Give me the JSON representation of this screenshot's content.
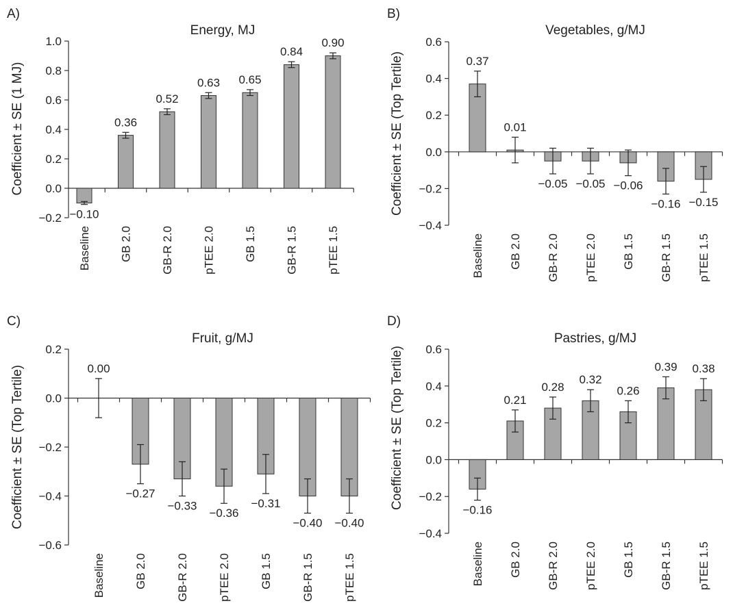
{
  "chart_data": [
    {
      "panel_label": "A)",
      "type": "bar",
      "title": "Energy, MJ",
      "ylabel": "Coefficient ± SE (1 MJ)",
      "xlabel": "",
      "ylim": [
        -0.2,
        1.0
      ],
      "yticks": [
        -0.2,
        0.0,
        0.2,
        0.4,
        0.6,
        0.8,
        1.0
      ],
      "ytick_labels": [
        "−0.2",
        "0.0",
        "0.2",
        "0.4",
        "0.6",
        "0.8",
        "1.0"
      ],
      "categories": [
        "Baseline",
        "GB 2.0",
        "GB-R 2.0",
        "pTEE 2.0",
        "GB 1.5",
        "GB-R 1.5",
        "pTEE 1.5"
      ],
      "values": [
        -0.1,
        0.36,
        0.52,
        0.63,
        0.65,
        0.84,
        0.9
      ],
      "errors": [
        0.01,
        0.02,
        0.02,
        0.02,
        0.02,
        0.02,
        0.02
      ],
      "value_labels": [
        "−0.10",
        "0.36",
        "0.52",
        "0.63",
        "0.65",
        "0.84",
        "0.90"
      ],
      "bar_color": "#a6a6a6",
      "grid": false
    },
    {
      "panel_label": "B)",
      "type": "bar",
      "title": "Vegetables, g/MJ",
      "ylabel": "Coefficient ± SE (Top Tertile)",
      "xlabel": "",
      "ylim": [
        -0.4,
        0.6
      ],
      "yticks": [
        -0.4,
        -0.2,
        0.0,
        0.2,
        0.4,
        0.6
      ],
      "ytick_labels": [
        "−0.4",
        "−0.2",
        "0.0",
        "0.2",
        "0.4",
        "0.6"
      ],
      "categories": [
        "Baseline",
        "GB 2.0",
        "GB-R 2.0",
        "pTEE 2.0",
        "GB 1.5",
        "GB-R 1.5",
        "pTEE 1.5"
      ],
      "values": [
        0.37,
        0.01,
        -0.05,
        -0.05,
        -0.06,
        -0.16,
        -0.15
      ],
      "errors": [
        0.07,
        0.07,
        0.07,
        0.07,
        0.07,
        0.07,
        0.07
      ],
      "value_labels": [
        "0.37",
        "0.01",
        "−0.05",
        "−0.05",
        "−0.06",
        "−0.16",
        "−0.15"
      ],
      "bar_color": "#a6a6a6",
      "grid": false
    },
    {
      "panel_label": "C)",
      "type": "bar",
      "title": "Fruit, g/MJ",
      "ylabel": "Coefficient ± SE (Top Tertile)",
      "xlabel": "",
      "ylim": [
        -0.6,
        0.2
      ],
      "yticks": [
        -0.6,
        -0.4,
        -0.2,
        0.0,
        0.2
      ],
      "ytick_labels": [
        "−0.6",
        "−0.4",
        "−0.2",
        "0.0",
        "0.2"
      ],
      "categories": [
        "Baseline",
        "GB 2.0",
        "GB-R 2.0",
        "pTEE 2.0",
        "GB 1.5",
        "GB-R 1.5",
        "pTEE 1.5"
      ],
      "values": [
        0.0,
        -0.27,
        -0.33,
        -0.36,
        -0.31,
        -0.4,
        -0.4
      ],
      "errors": [
        0.08,
        0.08,
        0.07,
        0.07,
        0.08,
        0.07,
        0.07
      ],
      "value_labels": [
        "0.00",
        "−0.27",
        "−0.33",
        "−0.36",
        "−0.31",
        "−0.40",
        "−0.40"
      ],
      "bar_color": "#a6a6a6",
      "grid": false
    },
    {
      "panel_label": "D)",
      "type": "bar",
      "title": "Pastries, g/MJ",
      "ylabel": "Coefficient ± SE (Top Tertile)",
      "xlabel": "",
      "ylim": [
        -0.4,
        0.6
      ],
      "yticks": [
        -0.4,
        -0.2,
        0.0,
        0.2,
        0.4,
        0.6
      ],
      "ytick_labels": [
        "−0.4",
        "−0.2",
        "0.0",
        "0.2",
        "0.4",
        "0.6"
      ],
      "categories": [
        "Baseline",
        "GB 2.0",
        "GB-R 2.0",
        "pTEE 2.0",
        "GB 1.5",
        "GB-R 1.5",
        "pTEE 1.5"
      ],
      "values": [
        -0.16,
        0.21,
        0.28,
        0.32,
        0.26,
        0.39,
        0.38
      ],
      "errors": [
        0.06,
        0.06,
        0.06,
        0.06,
        0.06,
        0.06,
        0.06
      ],
      "value_labels": [
        "−0.16",
        "0.21",
        "0.28",
        "0.32",
        "0.26",
        "0.39",
        "0.38"
      ],
      "bar_color": "#a6a6a6",
      "grid": false
    }
  ]
}
